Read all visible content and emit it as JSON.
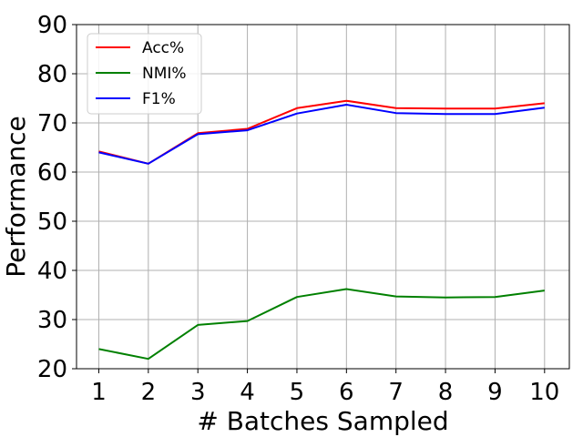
{
  "chart_data": {
    "type": "line",
    "title": "",
    "xlabel": "# Batches Sampled",
    "ylabel": "Performance",
    "x": [
      1,
      2,
      3,
      4,
      5,
      6,
      7,
      8,
      9,
      10
    ],
    "xlim": [
      0.55,
      10.5
    ],
    "ylim": [
      20,
      90
    ],
    "xticks": [
      1,
      2,
      3,
      4,
      5,
      6,
      7,
      8,
      9,
      10
    ],
    "yticks": [
      20,
      30,
      40,
      50,
      60,
      70,
      80,
      90
    ],
    "grid": true,
    "legend_position": "top-left",
    "series": [
      {
        "name": "Acc%",
        "color": "#ff0000",
        "values": [
          64.2,
          61.7,
          67.9,
          68.8,
          73.0,
          74.5,
          73.0,
          72.9,
          72.9,
          74.0
        ]
      },
      {
        "name": "NMI%",
        "color": "#008000",
        "values": [
          24.0,
          22.0,
          28.9,
          29.7,
          34.6,
          36.2,
          34.7,
          34.5,
          34.6,
          35.9
        ]
      },
      {
        "name": "F1%",
        "color": "#0000ff",
        "values": [
          64.0,
          61.7,
          67.7,
          68.5,
          71.9,
          73.7,
          72.0,
          71.8,
          71.8,
          73.1
        ]
      }
    ]
  }
}
